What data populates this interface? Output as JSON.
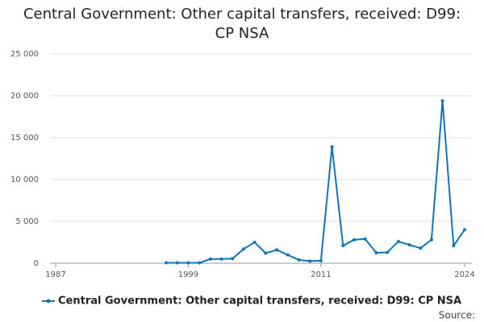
{
  "chart_data": {
    "type": "line",
    "title": "Central Government: Other capital transfers, received: D99: CP NSA",
    "x": [
      1997,
      1998,
      1999,
      2000,
      2001,
      2002,
      2003,
      2004,
      2005,
      2006,
      2007,
      2008,
      2009,
      2010,
      2011,
      2012,
      2013,
      2014,
      2015,
      2016,
      2017,
      2018,
      2019,
      2020,
      2021,
      2022,
      2023,
      2024
    ],
    "series": [
      {
        "name": "Central Government: Other capital transfers, received: D99: CP NSA",
        "color": "#1174b3",
        "values": [
          50,
          50,
          50,
          50,
          500,
          500,
          550,
          1700,
          2500,
          1200,
          1600,
          1000,
          400,
          250,
          300,
          13900,
          2100,
          2800,
          2900,
          1250,
          1300,
          2600,
          2200,
          1800,
          2800,
          19400,
          2100,
          4000
        ]
      }
    ],
    "xlim": [
      1987,
      2024
    ],
    "xticks": [
      1987,
      1999,
      2011,
      2024
    ],
    "ylim": [
      0,
      25000
    ],
    "yticks": [
      0,
      {
        "value": 5000,
        "label": "5 000"
      },
      {
        "value": 10000,
        "label": "10 000"
      },
      {
        "value": 15000,
        "label": "15 000"
      },
      {
        "value": 20000,
        "label": "20 000"
      },
      {
        "value": 25000,
        "label": "25 000"
      }
    ],
    "grid": true,
    "legend": "bottom",
    "source": "Source:"
  }
}
